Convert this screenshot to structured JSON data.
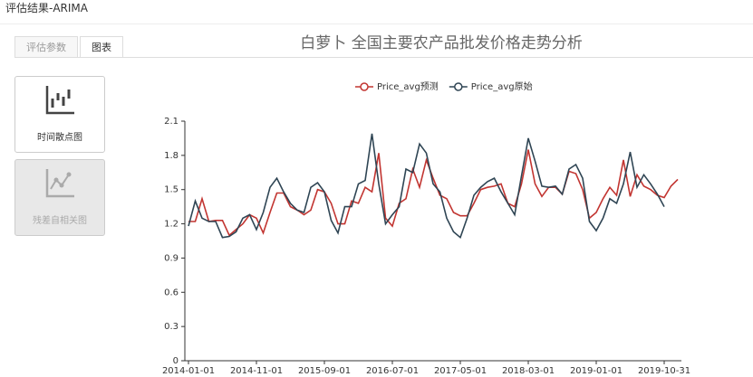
{
  "header": {
    "title": "评估结果-ARIMA"
  },
  "tabs": [
    "评估参数",
    "图表"
  ],
  "sidebar": [
    "时间散点图",
    "残差自相关图"
  ],
  "chart_data": {
    "type": "line",
    "title": "白萝卜  全国主要农产品批发价格走势分析",
    "categories": [
      "2014-01-01",
      null,
      null,
      null,
      null,
      null,
      null,
      null,
      null,
      null,
      "2014-11-01",
      null,
      null,
      null,
      null,
      null,
      null,
      null,
      null,
      null,
      "2015-09-01",
      null,
      null,
      null,
      null,
      null,
      null,
      null,
      null,
      null,
      "2016-07-01",
      null,
      null,
      null,
      null,
      null,
      null,
      null,
      null,
      null,
      "2017-05-01",
      null,
      null,
      null,
      null,
      null,
      null,
      null,
      null,
      null,
      "2018-03-01",
      null,
      null,
      null,
      null,
      null,
      null,
      null,
      null,
      null,
      "2019-01-01",
      null,
      null,
      null,
      null,
      null,
      null,
      null,
      null,
      null,
      "2019-10-31",
      null,
      null
    ],
    "series": [
      {
        "name": "Price_avg预测",
        "color": "#c23531",
        "values": [
          1.22,
          1.22,
          1.42,
          1.22,
          1.23,
          1.23,
          1.1,
          1.15,
          1.2,
          1.28,
          1.25,
          1.12,
          1.3,
          1.47,
          1.47,
          1.35,
          1.32,
          1.28,
          1.32,
          1.5,
          1.48,
          1.38,
          1.2,
          1.2,
          1.4,
          1.38,
          1.52,
          1.48,
          1.82,
          1.25,
          1.18,
          1.38,
          1.42,
          1.68,
          1.52,
          1.76,
          1.6,
          1.45,
          1.42,
          1.3,
          1.27,
          1.27,
          1.38,
          1.5,
          1.52,
          1.53,
          1.55,
          1.38,
          1.35,
          1.55,
          1.85,
          1.55,
          1.44,
          1.52,
          1.52,
          1.46,
          1.66,
          1.64,
          1.5,
          1.25,
          1.3,
          1.42,
          1.52,
          1.45,
          1.76,
          1.44,
          1.63,
          1.53,
          1.5,
          1.45,
          1.43,
          1.53,
          1.59
        ]
      },
      {
        "name": "Price_avg原始",
        "color": "#2f4554",
        "values": [
          1.18,
          1.4,
          1.25,
          1.22,
          1.22,
          1.08,
          1.09,
          1.13,
          1.25,
          1.28,
          1.15,
          1.3,
          1.52,
          1.6,
          1.48,
          1.38,
          1.32,
          1.3,
          1.52,
          1.56,
          1.48,
          1.23,
          1.12,
          1.35,
          1.35,
          1.55,
          1.58,
          1.99,
          1.55,
          1.2,
          1.28,
          1.35,
          1.68,
          1.65,
          1.9,
          1.82,
          1.55,
          1.48,
          1.25,
          1.13,
          1.08,
          1.25,
          1.45,
          1.52,
          1.57,
          1.6,
          1.48,
          1.38,
          1.28,
          1.62,
          1.95,
          1.75,
          1.53,
          1.52,
          1.53,
          1.46,
          1.68,
          1.72,
          1.6,
          1.22,
          1.14,
          1.25,
          1.42,
          1.38,
          1.55,
          1.83,
          1.52,
          1.63,
          1.55,
          1.46,
          1.35,
          null,
          null
        ]
      }
    ],
    "ylim": [
      0,
      2.1
    ],
    "yticks": [
      0,
      0.3,
      0.6,
      0.9,
      1.2,
      1.5,
      1.8,
      2.1
    ]
  }
}
